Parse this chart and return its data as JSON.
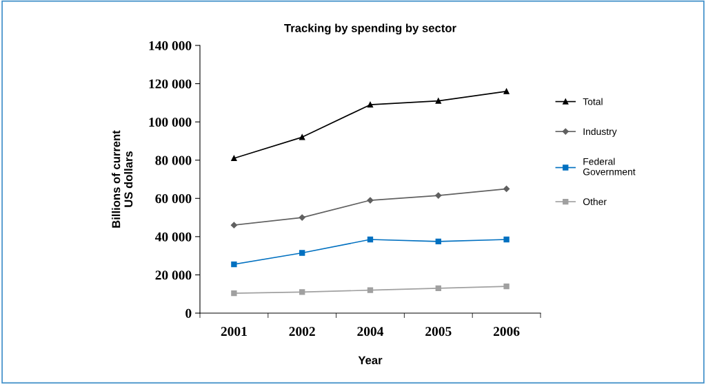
{
  "chart_data": {
    "type": "line",
    "title": "Tracking by spending by sector",
    "xlabel": "Year",
    "ylabel": "Billions of current\nUS dollars",
    "categories": [
      "2001",
      "2002",
      "2004",
      "2005",
      "2006"
    ],
    "series": [
      {
        "name": "Total",
        "color": "#000000",
        "marker": "triangle",
        "values": [
          81000,
          92000,
          109000,
          111000,
          116000
        ]
      },
      {
        "name": "Industry",
        "color": "#606060",
        "marker": "diamond",
        "values": [
          46000,
          50000,
          59000,
          61500,
          65000
        ]
      },
      {
        "name": "Federal\nGovernment",
        "color": "#0070c0",
        "marker": "square",
        "values": [
          25500,
          31500,
          38500,
          37500,
          38500
        ]
      },
      {
        "name": "Other",
        "color": "#a0a0a0",
        "marker": "square",
        "values": [
          10400,
          11000,
          12000,
          13000,
          14000
        ]
      }
    ],
    "ylim": [
      0,
      140000
    ],
    "yticks": [
      0,
      {
        "value": 20000,
        "label": "20 000"
      },
      {
        "value": 40000,
        "label": "40 000"
      },
      {
        "value": 60000,
        "label": "60 000"
      },
      {
        "value": 80000,
        "label": "80 000"
      },
      {
        "value": 100000,
        "label": "100 000"
      },
      {
        "value": 120000,
        "label": "120 000"
      },
      {
        "value": 140000,
        "label": "140 000"
      }
    ],
    "grid": false,
    "legend": "right",
    "line_style": "solid"
  }
}
